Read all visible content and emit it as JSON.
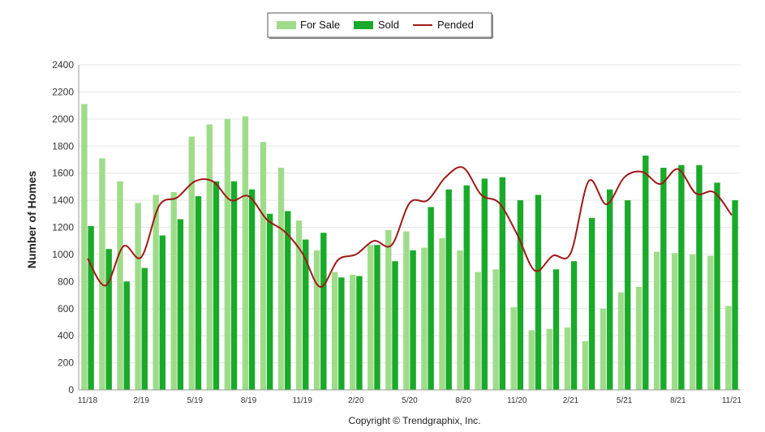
{
  "chart_data": {
    "type": "bar",
    "title": "",
    "xlabel": "",
    "ylabel": "Number of Homes",
    "ylim": [
      0,
      2400
    ],
    "yticks": [
      0,
      200,
      400,
      600,
      800,
      1000,
      1200,
      1400,
      1600,
      1800,
      2000,
      2200,
      2400
    ],
    "grid": true,
    "legend_position": "top-center",
    "categories": [
      "11/18",
      "12/18",
      "1/19",
      "2/19",
      "3/19",
      "4/19",
      "5/19",
      "6/19",
      "7/19",
      "8/19",
      "9/19",
      "10/19",
      "11/19",
      "12/19",
      "1/20",
      "2/20",
      "3/20",
      "4/20",
      "5/20",
      "6/20",
      "7/20",
      "8/20",
      "9/20",
      "10/20",
      "11/20",
      "12/20",
      "1/21",
      "2/21",
      "3/21",
      "4/21",
      "5/21",
      "6/21",
      "7/21",
      "8/21",
      "9/21",
      "10/21",
      "11/21"
    ],
    "tick_labels": [
      "11/18",
      "2/19",
      "5/19",
      "8/19",
      "11/19",
      "2/20",
      "5/20",
      "8/20",
      "11/20",
      "2/21",
      "5/21",
      "8/21",
      "11/21"
    ],
    "series": [
      {
        "name": "For Sale",
        "type": "bar",
        "color": "#9fdc8a",
        "values": [
          2110,
          1710,
          1540,
          1380,
          1440,
          1460,
          1870,
          1960,
          2000,
          2020,
          1830,
          1640,
          1250,
          1030,
          870,
          850,
          1070,
          1180,
          1170,
          1050,
          1120,
          1030,
          870,
          890,
          610,
          440,
          450,
          460,
          360,
          600,
          720,
          760,
          1020,
          1010,
          1000,
          990,
          620
        ]
      },
      {
        "name": "Sold",
        "type": "bar",
        "color": "#1aaa2a",
        "values": [
          1210,
          1040,
          800,
          900,
          1140,
          1260,
          1430,
          1540,
          1540,
          1480,
          1300,
          1320,
          1110,
          1160,
          830,
          840,
          1070,
          950,
          1030,
          1350,
          1480,
          1510,
          1560,
          1570,
          1400,
          1440,
          890,
          950,
          1270,
          1480,
          1400,
          1730,
          1640,
          1660,
          1660,
          1530,
          1400
        ]
      },
      {
        "name": "Pended",
        "type": "line",
        "color": "#a01818",
        "values": [
          970,
          770,
          1060,
          980,
          1360,
          1420,
          1540,
          1540,
          1400,
          1430,
          1260,
          1170,
          1010,
          760,
          960,
          1000,
          1100,
          1070,
          1380,
          1400,
          1570,
          1640,
          1440,
          1380,
          1150,
          880,
          990,
          1010,
          1540,
          1370,
          1570,
          1610,
          1520,
          1630,
          1450,
          1460,
          1290
        ]
      }
    ]
  },
  "legend": {
    "for_sale": "For Sale",
    "sold": "Sold",
    "pended": "Pended"
  },
  "copyright": "Copyright © Trendgraphix, Inc."
}
